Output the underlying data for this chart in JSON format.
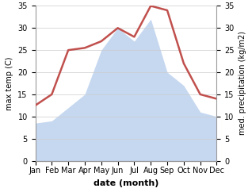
{
  "months": [
    "Jan",
    "Feb",
    "Mar",
    "Apr",
    "May",
    "Jun",
    "Jul",
    "Aug",
    "Sep",
    "Oct",
    "Nov",
    "Dec"
  ],
  "temperature": [
    12.5,
    15.0,
    25.0,
    25.5,
    27.0,
    30.0,
    28.0,
    35.0,
    34.0,
    22.0,
    15.0,
    14.0
  ],
  "precipitation": [
    8.5,
    9.0,
    12.0,
    15.0,
    25.0,
    30.0,
    27.0,
    32.0,
    20.0,
    17.0,
    11.0,
    10.0
  ],
  "temp_color": "#c0504d",
  "precip_color": "#c6d8f0",
  "ylim_left": [
    0,
    35
  ],
  "ylim_right": [
    0,
    35
  ],
  "ylabel_left": "max temp (C)",
  "ylabel_right": "med. precipitation (kg/m2)",
  "xlabel": "date (month)",
  "bg_color": "#ffffff",
  "grid_color": "#cccccc",
  "temp_linewidth": 1.8,
  "xlabel_fontsize": 8,
  "ylabel_fontsize": 7,
  "tick_fontsize": 7
}
